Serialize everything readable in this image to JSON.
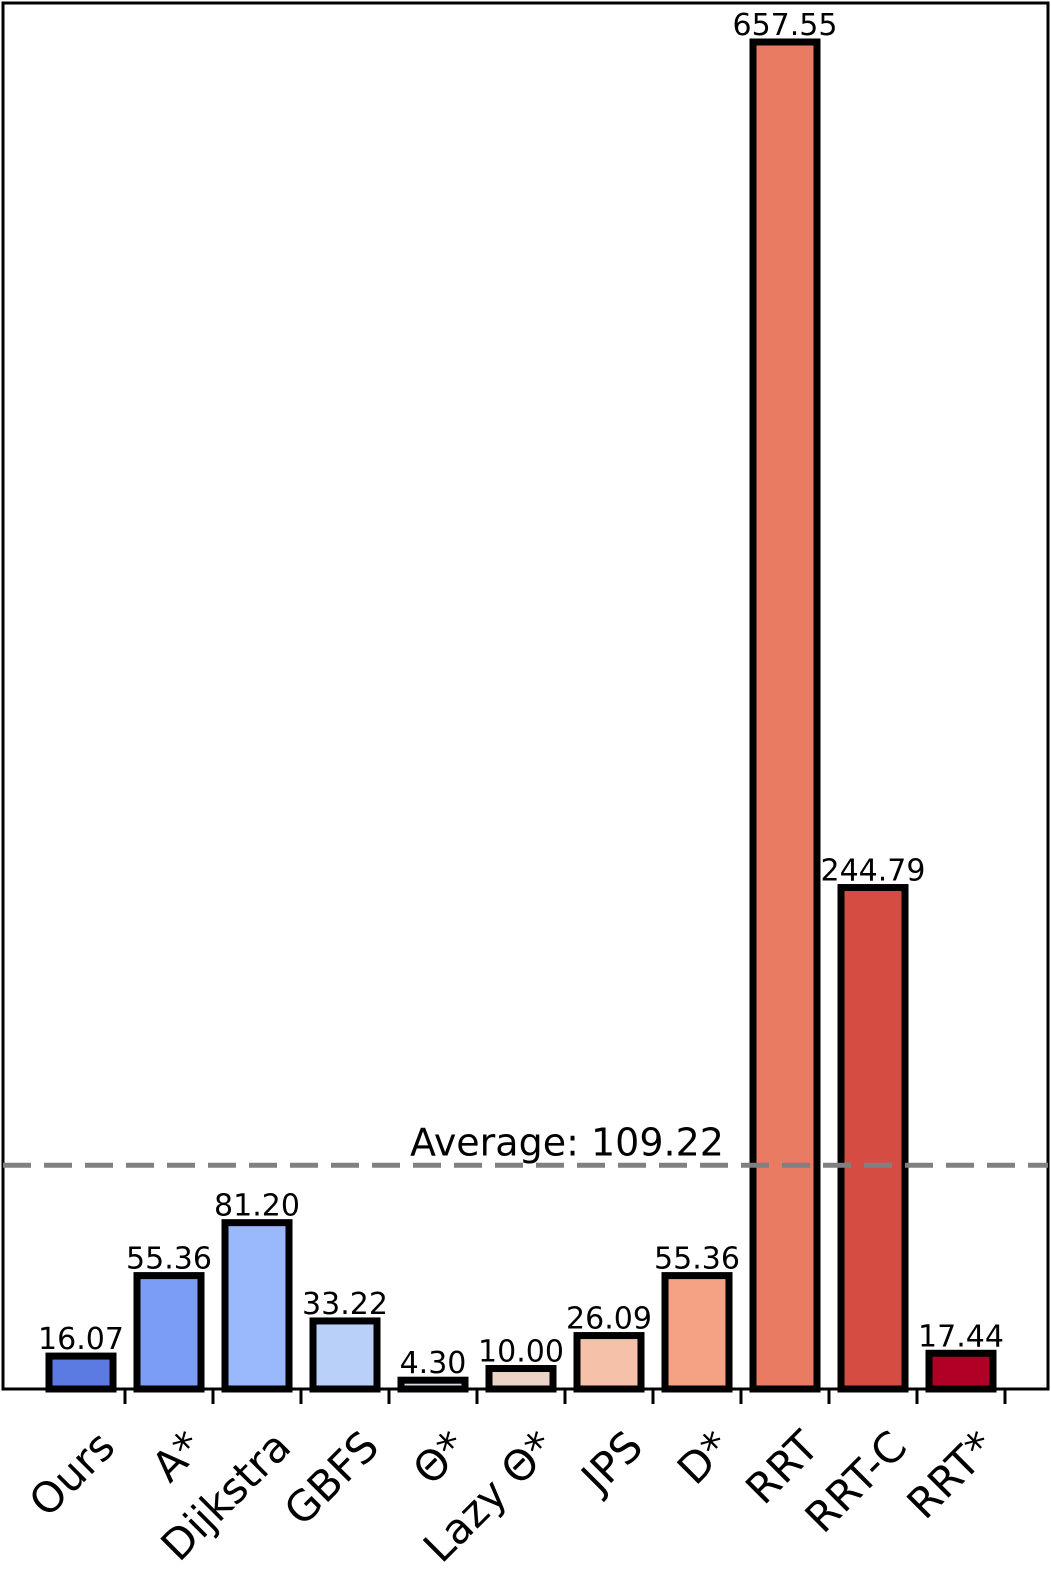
{
  "chart_data": {
    "type": "bar",
    "title": "",
    "xlabel": "",
    "ylabel": "",
    "categories": [
      "Ours",
      "A*",
      "Dijkstra",
      "GBFS",
      "Θ*",
      "Lazy Θ*",
      "JPS",
      "D*",
      "RRT",
      "RRT-C",
      "RRT*"
    ],
    "values": [
      16.07,
      55.36,
      81.2,
      33.22,
      4.3,
      10.0,
      26.09,
      55.36,
      657.55,
      244.79,
      17.44
    ],
    "value_labels": [
      "16.07",
      "55.36",
      "81.20",
      "33.22",
      "4.30",
      "10.00",
      "26.09",
      "55.36",
      "657.55",
      "244.79",
      "17.44"
    ],
    "colors": [
      "#5b7be3",
      "#7b9ef4",
      "#9ab9fd",
      "#b9d0f9",
      "#d4dbe6",
      "#ecd3c7",
      "#f5c1a9",
      "#f4a283",
      "#e97b62",
      "#d54d42",
      "#b00026"
    ],
    "ylim": [
      0,
      690
    ],
    "grid": false,
    "legend": "none",
    "average": {
      "value": 109.22,
      "label": "Average: 109.22",
      "color": "#808080",
      "style": "dashed"
    }
  }
}
